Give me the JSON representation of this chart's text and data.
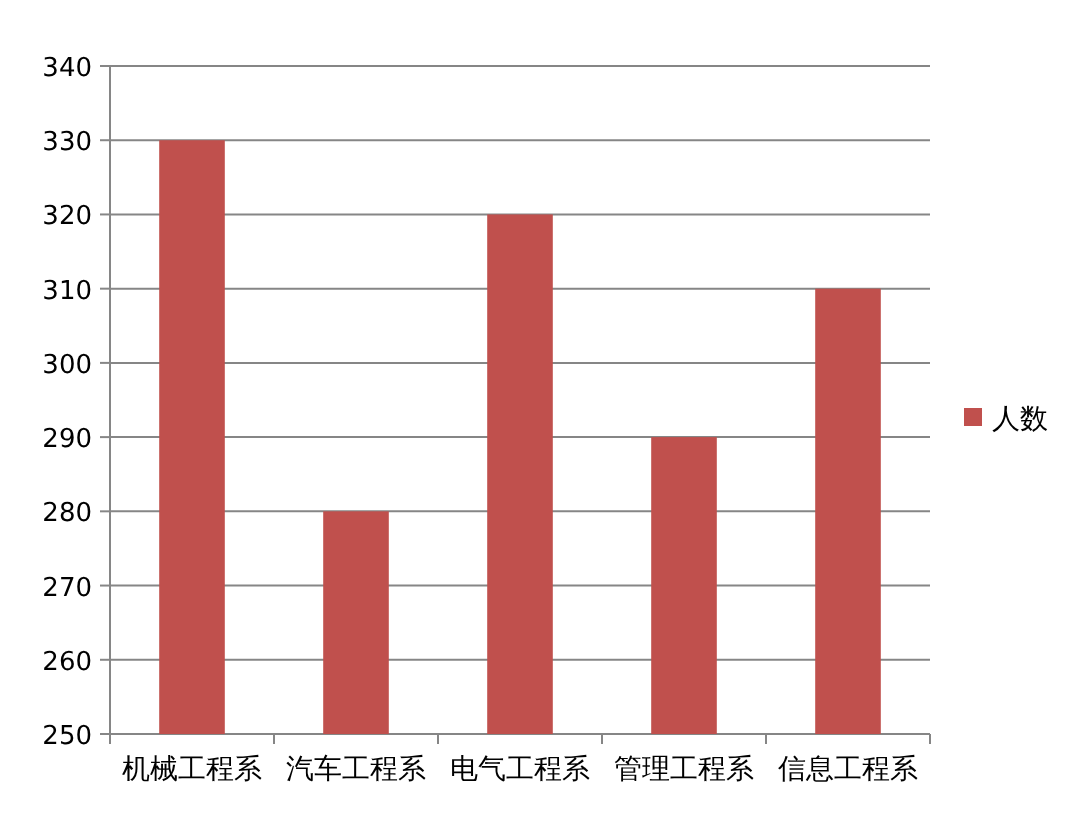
{
  "chart_data": {
    "type": "bar",
    "categories": [
      "机械工程系",
      "汽车工程系",
      "电气工程系",
      "管理工程系",
      "信息工程系"
    ],
    "series": [
      {
        "name": "人数",
        "color": "#c0504d",
        "values": [
          330,
          280,
          320,
          290,
          310
        ]
      }
    ],
    "ylim": [
      250,
      340
    ],
    "yticks": [
      250,
      260,
      270,
      280,
      290,
      300,
      310,
      320,
      330,
      340
    ],
    "grid": "y",
    "legend": "right"
  }
}
